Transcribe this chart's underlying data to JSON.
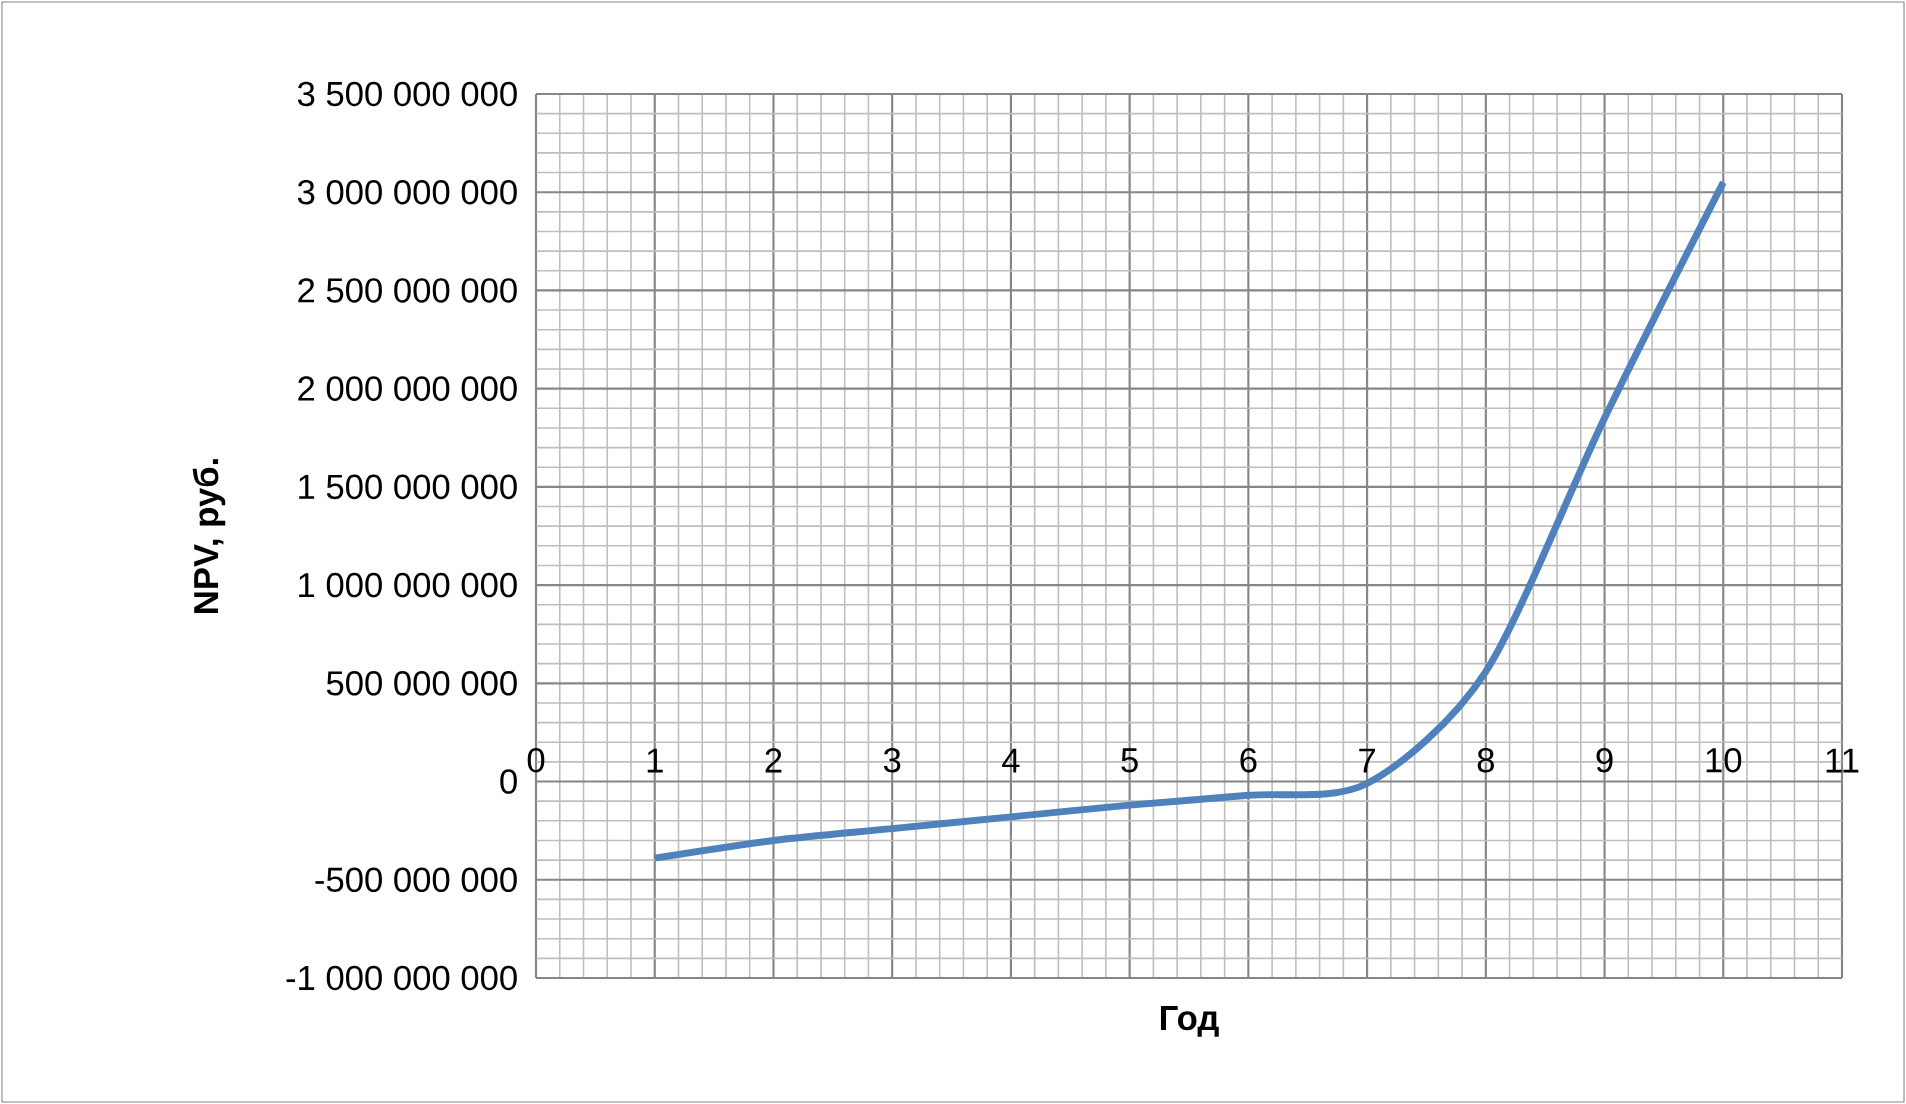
{
  "chart_data": {
    "type": "line",
    "xlabel": "Год",
    "ylabel": "NPV, руб.",
    "x": [
      1,
      2,
      3,
      4,
      5,
      6,
      7,
      8,
      9,
      10
    ],
    "series": [
      {
        "color": "#4f81bd",
        "values": [
          -390000000,
          -300000000,
          -240000000,
          -180000000,
          -120000000,
          -70000000,
          -10000000,
          560000000,
          1850000000,
          3050000000
        ]
      }
    ],
    "xlim": [
      0,
      11
    ],
    "xticks": [
      0,
      1,
      2,
      3,
      4,
      5,
      6,
      7,
      8,
      9,
      10,
      11
    ],
    "ylim": [
      -1000000000,
      3500000000
    ],
    "yticks": [
      {
        "value": -1000000000,
        "label": "-1 000 000 000"
      },
      {
        "value": -500000000,
        "label": "-500 000 000"
      },
      {
        "value": 0,
        "label": "0"
      },
      {
        "value": 500000000,
        "label": "500 000 000"
      },
      {
        "value": 1000000000,
        "label": "1 000 000 000"
      },
      {
        "value": 1500000000,
        "label": "1 500 000 000"
      },
      {
        "value": 2000000000,
        "label": "2 000 000 000"
      },
      {
        "value": 2500000000,
        "label": "2 500 000 000"
      },
      {
        "value": 3000000000,
        "label": "3 000 000 000"
      },
      {
        "value": 3500000000,
        "label": "3 500 000 000"
      }
    ],
    "grid": true,
    "marker": "none",
    "line_style": "solid"
  }
}
